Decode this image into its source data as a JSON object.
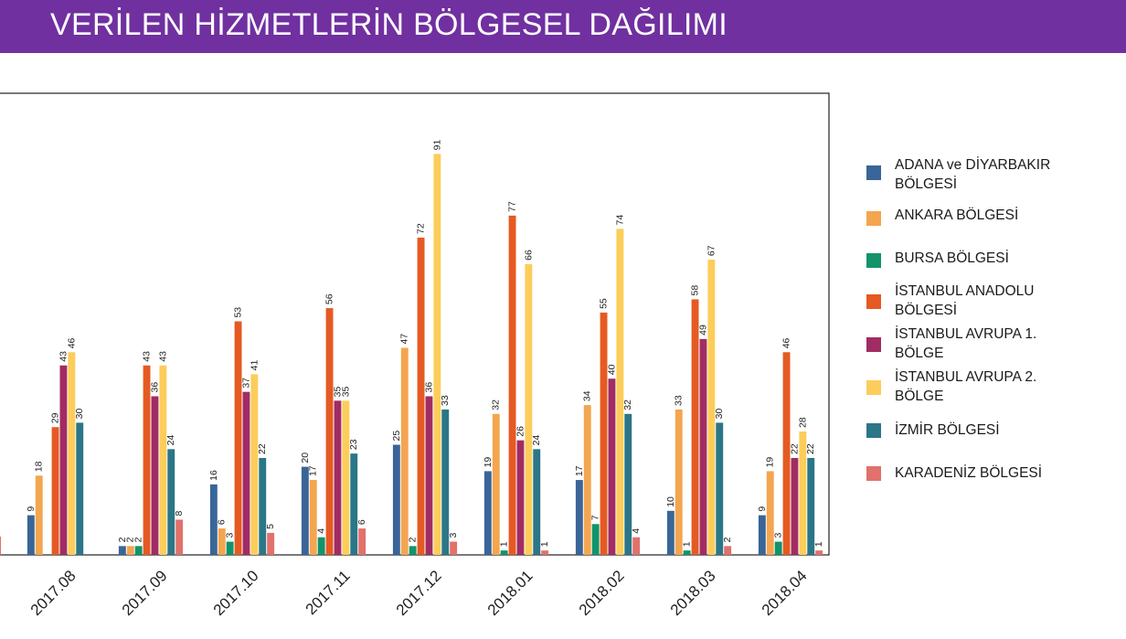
{
  "header": {
    "title": "VERİLEN HİZMETLERİN BÖLGESEL DAĞILIMI"
  },
  "chart_data": {
    "type": "bar",
    "categories": [
      "2017.08",
      "2017.09",
      "2017.10",
      "2017.11",
      "2017.12",
      "2018.01",
      "2018.02",
      "2018.03",
      "2018.04"
    ],
    "ylim": [
      0,
      100
    ],
    "grid": false,
    "legend_position": "right",
    "series": [
      {
        "name": "ADANA ve DİYARBAKIR BÖLGESİ",
        "color": "#3a6598",
        "values": [
          9,
          2,
          16,
          20,
          25,
          19,
          17,
          10,
          9
        ]
      },
      {
        "name": "ANKARA BÖLGESİ",
        "color": "#f4a54f",
        "values": [
          18,
          2,
          6,
          17,
          47,
          32,
          34,
          33,
          19
        ]
      },
      {
        "name": "BURSA BÖLGESİ",
        "color": "#11946a",
        "values": [
          null,
          2,
          3,
          4,
          2,
          1,
          7,
          1,
          3
        ]
      },
      {
        "name": "İSTANBUL ANADOLU BÖLGESİ",
        "color": "#e55a22",
        "values": [
          29,
          43,
          53,
          56,
          72,
          77,
          55,
          58,
          46
        ]
      },
      {
        "name": "İSTANBUL AVRUPA 1. BÖLGE",
        "color": "#a12c63",
        "values": [
          43,
          36,
          37,
          35,
          36,
          26,
          40,
          49,
          22
        ]
      },
      {
        "name": "İSTANBUL AVRUPA 2. BÖLGE",
        "color": "#fccd5a",
        "values": [
          46,
          43,
          41,
          35,
          91,
          66,
          74,
          67,
          28
        ]
      },
      {
        "name": "İZMİR BÖLGESİ",
        "color": "#2b7687",
        "values": [
          30,
          24,
          22,
          23,
          33,
          24,
          32,
          30,
          22
        ]
      },
      {
        "name": "KARADENİZ BÖLGESİ",
        "color": "#e1716b",
        "values": [
          null,
          8,
          5,
          6,
          3,
          1,
          4,
          2,
          1
        ]
      }
    ]
  },
  "legend": {
    "items": [
      {
        "line1": "ADANA ve DİYARBAKIR",
        "line2": "BÖLGESİ",
        "color": "#3a6598"
      },
      {
        "line1": "ANKARA BÖLGESİ",
        "line2": "",
        "color": "#f4a54f"
      },
      {
        "line1": "BURSA BÖLGESİ",
        "line2": "",
        "color": "#11946a"
      },
      {
        "line1": "İSTANBUL ANADOLU",
        "line2": "BÖLGESİ",
        "color": "#e55a22"
      },
      {
        "line1": "İSTANBUL AVRUPA 1.",
        "line2": "BÖLGE",
        "color": "#a12c63"
      },
      {
        "line1": "İSTANBUL AVRUPA 2.",
        "line2": "BÖLGE",
        "color": "#fccd5a"
      },
      {
        "line1": "İZMİR BÖLGESİ",
        "line2": "",
        "color": "#2b7687"
      },
      {
        "line1": "KARADENİZ BÖLGESİ",
        "line2": "",
        "color": "#e1716b"
      }
    ]
  }
}
